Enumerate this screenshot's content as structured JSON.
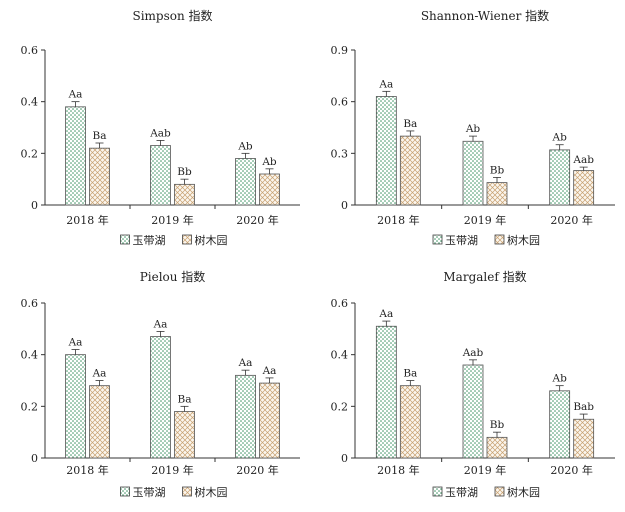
{
  "colors": {
    "series1": "#2e8b57",
    "series2": "#c8a070",
    "axis": "#333333"
  },
  "chart_data": [
    {
      "type": "bar",
      "title": "Simpson 指数",
      "categories": [
        "2018 年",
        "2019 年",
        "2020 年"
      ],
      "ylim": [
        0,
        0.6
      ],
      "yticks": [
        "0",
        "0.2",
        "0.4",
        "0.6"
      ],
      "legend": "bottom",
      "series": [
        {
          "name": "玉带湖",
          "values": [
            0.38,
            0.23,
            0.18
          ],
          "errors": [
            0.02,
            0.02,
            0.02
          ],
          "labels": [
            "Aa",
            "Aab",
            "Ab"
          ]
        },
        {
          "name": "树木园",
          "values": [
            0.22,
            0.08,
            0.12
          ],
          "errors": [
            0.02,
            0.02,
            0.02
          ],
          "labels": [
            "Ba",
            "Bb",
            "Ab"
          ]
        }
      ]
    },
    {
      "type": "bar",
      "title": "Shannon-Wiener 指数",
      "categories": [
        "2018 年",
        "2019 年",
        "2020 年"
      ],
      "ylim": [
        0,
        0.9
      ],
      "yticks": [
        "0",
        "0.3",
        "0.6",
        "0.9"
      ],
      "legend": "bottom",
      "series": [
        {
          "name": "玉带湖",
          "values": [
            0.63,
            0.37,
            0.32
          ],
          "errors": [
            0.03,
            0.03,
            0.03
          ],
          "labels": [
            "Aa",
            "Ab",
            "Ab"
          ]
        },
        {
          "name": "树木园",
          "values": [
            0.4,
            0.13,
            0.2
          ],
          "errors": [
            0.03,
            0.03,
            0.02
          ],
          "labels": [
            "Ba",
            "Bb",
            "Aab"
          ]
        }
      ]
    },
    {
      "type": "bar",
      "title": "Pielou 指数",
      "categories": [
        "2018 年",
        "2019 年",
        "2020 年"
      ],
      "ylim": [
        0,
        0.6
      ],
      "yticks": [
        "0",
        "0.2",
        "0.4",
        "0.6"
      ],
      "legend": "bottom",
      "series": [
        {
          "name": "玉带湖",
          "values": [
            0.4,
            0.47,
            0.32
          ],
          "errors": [
            0.02,
            0.02,
            0.02
          ],
          "labels": [
            "Aa",
            "Aa",
            "Aa"
          ]
        },
        {
          "name": "树木园",
          "values": [
            0.28,
            0.18,
            0.29
          ],
          "errors": [
            0.02,
            0.02,
            0.02
          ],
          "labels": [
            "Aa",
            "Ba",
            "Aa"
          ]
        }
      ]
    },
    {
      "type": "bar",
      "title": "Margalef 指数",
      "categories": [
        "2018 年",
        "2019 年",
        "2020 年"
      ],
      "ylim": [
        0,
        0.6
      ],
      "yticks": [
        "0",
        "0.2",
        "0.4",
        "0.6"
      ],
      "legend": "bottom",
      "series": [
        {
          "name": "玉带湖",
          "values": [
            0.51,
            0.36,
            0.26
          ],
          "errors": [
            0.02,
            0.02,
            0.02
          ],
          "labels": [
            "Aa",
            "Aab",
            "Ab"
          ]
        },
        {
          "name": "树木园",
          "values": [
            0.28,
            0.08,
            0.15
          ],
          "errors": [
            0.02,
            0.02,
            0.02
          ],
          "labels": [
            "Ba",
            "Bb",
            "Bab"
          ]
        }
      ]
    }
  ]
}
